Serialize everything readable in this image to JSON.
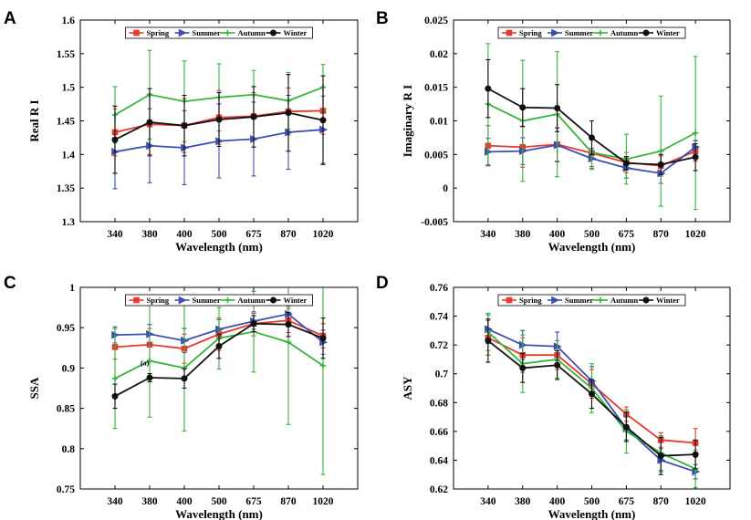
{
  "colors": {
    "Spring": "#e8392f",
    "Summer": "#3c4fb0",
    "Autumn": "#35b53a",
    "Winter": "#111111"
  },
  "chart_data": [
    {
      "panel": "A",
      "type": "line",
      "categories": [
        "340",
        "380",
        "400",
        "500",
        "675",
        "870",
        "1020"
      ],
      "xlabel": "Wavelength (nm)",
      "ylabel": "Real R I",
      "ylim": [
        1.3,
        1.6
      ],
      "yticks": [
        "1.3",
        "1.35",
        "1.4",
        "1.45",
        "1.5",
        "1.55",
        "1.6"
      ],
      "legend": "top",
      "annotation": null,
      "series": [
        {
          "name": "Spring",
          "values": [
            1.433,
            1.445,
            1.443,
            1.455,
            1.457,
            1.464,
            1.465
          ],
          "errors": [
            0.035,
            0.045,
            0.04,
            0.04,
            0.035,
            0.035,
            0.035
          ]
        },
        {
          "name": "Summer",
          "values": [
            1.404,
            1.413,
            1.41,
            1.42,
            1.423,
            1.433,
            1.437
          ],
          "errors": [
            0.055,
            0.055,
            0.055,
            0.055,
            0.055,
            0.055,
            0.05
          ]
        },
        {
          "name": "Autumn",
          "values": [
            1.459,
            1.489,
            1.479,
            1.485,
            1.489,
            1.48,
            1.5
          ],
          "errors": [
            0.042,
            0.066,
            0.06,
            0.05,
            0.036,
            0.042,
            0.034
          ]
        },
        {
          "name": "Winter",
          "values": [
            1.422,
            1.448,
            1.443,
            1.452,
            1.456,
            1.462,
            1.451
          ],
          "errors": [
            0.05,
            0.05,
            0.045,
            0.04,
            0.045,
            0.057,
            0.066
          ]
        }
      ]
    },
    {
      "panel": "B",
      "type": "line",
      "categories": [
        "340",
        "380",
        "400",
        "500",
        "675",
        "870",
        "1020"
      ],
      "xlabel": "Wavelength (nm)",
      "ylabel": "Imaginary R I",
      "ylim": [
        -0.005,
        0.025
      ],
      "yticks": [
        "-0.005",
        "0",
        "0.005",
        "0.01",
        "0.015",
        "0.02",
        "0.025"
      ],
      "legend": "top",
      "annotation": null,
      "series": [
        {
          "name": "Spring",
          "values": [
            0.0063,
            0.0061,
            0.0065,
            0.0052,
            0.0038,
            0.0033,
            0.0055
          ],
          "errors": [
            0.003,
            0.003,
            0.0025,
            0.002,
            0.0015,
            0.0015,
            0.0015
          ]
        },
        {
          "name": "Summer",
          "values": [
            0.0054,
            0.0055,
            0.0064,
            0.0044,
            0.003,
            0.0022,
            0.0061
          ],
          "errors": [
            0.002,
            0.002,
            0.0025,
            0.0015,
            0.0015,
            0.0015,
            0.001
          ]
        },
        {
          "name": "Autumn",
          "values": [
            0.0125,
            0.01,
            0.011,
            0.0053,
            0.0043,
            0.0055,
            0.0082
          ],
          "errors": [
            0.009,
            0.009,
            0.0093,
            0.0025,
            0.0037,
            0.0082,
            0.0114
          ]
        },
        {
          "name": "Winter",
          "values": [
            0.0148,
            0.012,
            0.0119,
            0.0075,
            0.0037,
            0.0035,
            0.0046
          ],
          "errors": [
            0.0043,
            0.0028,
            0.0035,
            0.0025,
            0.001,
            0.0015,
            0.002
          ]
        }
      ]
    },
    {
      "panel": "C",
      "type": "line",
      "categories": [
        "340",
        "380",
        "400",
        "500",
        "675",
        "870",
        "1020"
      ],
      "xlabel": "Wavelength (nm)",
      "ylabel": "SSA",
      "ylim": [
        0.75,
        1.0
      ],
      "yticks": [
        "0.75",
        "0.8",
        "0.85",
        "0.9",
        "0.95",
        "1"
      ],
      "legend": "top",
      "annotation": "(a)",
      "series": [
        {
          "name": "Spring",
          "values": [
            0.926,
            0.929,
            0.924,
            0.942,
            0.955,
            0.959,
            0.94
          ],
          "errors": [
            0.015,
            0.02,
            0.018,
            0.02,
            0.015,
            0.015,
            0.015
          ]
        },
        {
          "name": "Summer",
          "values": [
            0.941,
            0.942,
            0.934,
            0.948,
            0.958,
            0.967,
            0.932
          ],
          "errors": [
            0.01,
            0.012,
            0.015,
            0.012,
            0.01,
            0.01,
            0.015
          ]
        },
        {
          "name": "Autumn",
          "values": [
            0.887,
            0.909,
            0.9,
            0.937,
            0.945,
            0.932,
            0.903
          ],
          "errors": [
            0.062,
            0.07,
            0.078,
            0.038,
            0.05,
            0.102,
            0.135
          ]
        },
        {
          "name": "Winter",
          "values": [
            0.865,
            0.888,
            0.887,
            0.927,
            0.955,
            0.954,
            0.937
          ],
          "errors": [
            0.015,
            0.005,
            0.012,
            0.015,
            0.01,
            0.015,
            0.025
          ]
        }
      ]
    },
    {
      "panel": "D",
      "type": "line",
      "categories": [
        "340",
        "380",
        "400",
        "500",
        "675",
        "870",
        "1020"
      ],
      "xlabel": "Wavelength (nm)",
      "ylabel": "ASY",
      "ylim": [
        0.62,
        0.76
      ],
      "yticks": [
        "0.62",
        "0.64",
        "0.66",
        "0.68",
        "0.7",
        "0.72",
        "0.74",
        "0.76"
      ],
      "legend": "top",
      "annotation": null,
      "series": [
        {
          "name": "Spring",
          "values": [
            0.725,
            0.713,
            0.713,
            0.693,
            0.672,
            0.654,
            0.652
          ],
          "errors": [
            0.012,
            0.012,
            0.01,
            0.01,
            0.005,
            0.005,
            0.01
          ]
        },
        {
          "name": "Summer",
          "values": [
            0.731,
            0.72,
            0.719,
            0.695,
            0.662,
            0.64,
            0.632
          ],
          "errors": [
            0.01,
            0.01,
            0.01,
            0.01,
            0.008,
            0.008,
            0.005
          ]
        },
        {
          "name": "Autumn",
          "values": [
            0.729,
            0.707,
            0.71,
            0.69,
            0.66,
            0.645,
            0.634
          ],
          "errors": [
            0.013,
            0.02,
            0.013,
            0.017,
            0.015,
            0.012,
            0.013
          ]
        },
        {
          "name": "Winter",
          "values": [
            0.723,
            0.704,
            0.706,
            0.686,
            0.663,
            0.643,
            0.644
          ],
          "errors": [
            0.015,
            0.01,
            0.01,
            0.01,
            0.01,
            0.013,
            0.01
          ]
        }
      ]
    }
  ]
}
